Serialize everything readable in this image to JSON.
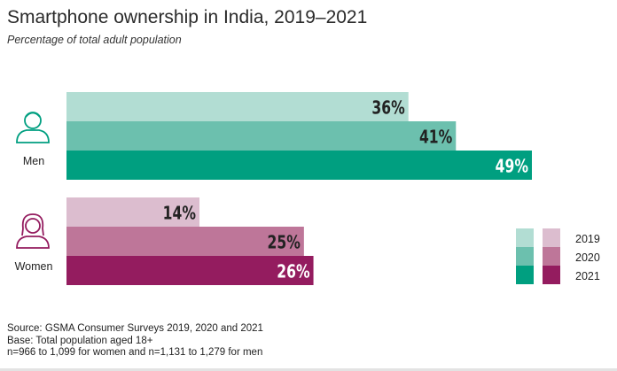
{
  "chart_data": {
    "type": "bar",
    "orientation": "horizontal",
    "title": "Smartphone ownership in India, 2019–2021",
    "subtitle": "Percentage of total adult population",
    "categories": [
      "Men",
      "Women"
    ],
    "series": [
      {
        "name": "2019",
        "values": [
          36,
          14
        ],
        "labels": [
          "36%",
          "14%"
        ]
      },
      {
        "name": "2020",
        "values": [
          41,
          25
        ],
        "labels": [
          "41%",
          "25%"
        ]
      },
      {
        "name": "2021",
        "values": [
          49,
          26
        ],
        "labels": [
          "49%",
          "26%"
        ]
      }
    ],
    "xlim": [
      0,
      50
    ],
    "grid": false,
    "legend": "bottom-right",
    "colors": {
      "men": [
        "#b2ddd3",
        "#6cc0ae",
        "#009f80"
      ],
      "women": [
        "#dcbdcf",
        "#be7699",
        "#941c5f"
      ]
    },
    "icons": {
      "men": "man-outline-icon",
      "women": "woman-outline-icon"
    },
    "icon_colors": {
      "men": "#009f80",
      "women": "#941c5f"
    }
  },
  "source": {
    "line1": "Source: GSMA Consumer Surveys 2019, 2020 and 2021",
    "line2": "Base: Total population aged 18+",
    "line3": "n=966 to 1,099 for women and n=1,131 to 1,279 for men"
  }
}
